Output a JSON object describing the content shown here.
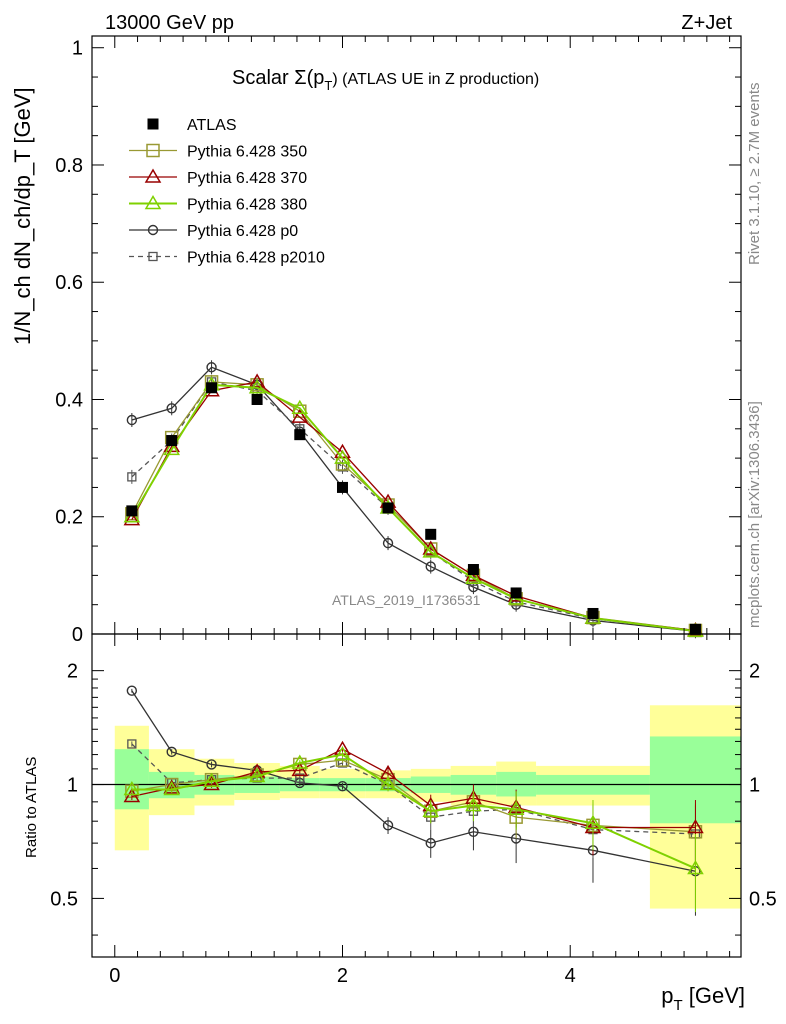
{
  "header": {
    "energy": "13000 GeV pp",
    "process": "Z+Jet"
  },
  "side": {
    "rivet": "Rivet 3.1.10, ≥ 2.7M events",
    "mcplots": "mcplots.cern.ch [arXiv:1306.3436]"
  },
  "watermark": "ATLAS_2019_I1736531",
  "chart_data": [
    {
      "type": "line",
      "panel": "main",
      "title": "Scalar Σ(p_T) (ATLAS UE in Z production)",
      "title_main": "Scalar Σ(p",
      "title_sub": "T",
      "title_rest": ") (ATLAS UE in Z production)",
      "ylabel": "1/N_ch dN_ch/dp_T [GeV]",
      "xlim": [
        -0.2,
        5.5
      ],
      "ylim": [
        0,
        1.02
      ],
      "yticks": [
        0,
        0.2,
        0.4,
        0.6,
        0.8,
        1
      ],
      "ytick_labels": [
        "0",
        "0.2",
        "0.4",
        "0.6",
        "0.8",
        "1"
      ],
      "x": [
        0.15,
        0.5,
        0.85,
        1.25,
        1.625,
        2.0,
        2.4,
        2.775,
        3.15,
        3.525,
        4.2,
        5.1
      ],
      "series": [
        {
          "name": "ATLAS",
          "marker": "filled-square",
          "color": "#000000",
          "values": [
            0.21,
            0.33,
            0.42,
            0.4,
            0.34,
            0.25,
            0.215,
            0.17,
            0.11,
            0.07,
            0.035,
            0.008
          ]
        },
        {
          "name": "Pythia 6.428 350",
          "marker": "open-square",
          "color": "#999933",
          "values": [
            0.205,
            0.335,
            0.43,
            0.425,
            0.38,
            0.29,
            0.22,
            0.145,
            0.1,
            0.06,
            0.028,
            0.006
          ]
        },
        {
          "name": "Pythia 6.428 370",
          "marker": "open-triangle",
          "color": "#990000",
          "values": [
            0.195,
            0.32,
            0.415,
            0.43,
            0.37,
            0.31,
            0.225,
            0.145,
            0.1,
            0.065,
            0.027,
            0.006
          ]
        },
        {
          "name": "Pythia 6.428 380",
          "marker": "open-triangle",
          "color": "#7FD100",
          "values": [
            0.2,
            0.315,
            0.425,
            0.42,
            0.385,
            0.3,
            0.215,
            0.14,
            0.095,
            0.06,
            0.027,
            0.005
          ]
        },
        {
          "name": "Pythia 6.428 p0",
          "marker": "open-circle",
          "color": "#333333",
          "values": [
            0.365,
            0.385,
            0.455,
            0.425,
            0.345,
            0.25,
            0.155,
            0.115,
            0.08,
            0.05,
            0.023,
            0.0047
          ]
        },
        {
          "name": "Pythia 6.428 p2010",
          "marker": "open-square-small",
          "color": "#555555",
          "dashed": true,
          "values": [
            0.268,
            0.33,
            0.43,
            0.415,
            0.35,
            0.285,
            0.215,
            0.14,
            0.09,
            0.055,
            0.026,
            0.006
          ]
        }
      ]
    },
    {
      "type": "line",
      "panel": "ratio",
      "ylabel": "Ratio to ATLAS",
      "xlabel": "p_T [GeV]",
      "xlabel_main": "p",
      "xlabel_sub": "T",
      "xlabel_rest": " [GeV]",
      "xlim": [
        -0.2,
        5.5
      ],
      "ylim": [
        0.35,
        2.5
      ],
      "xticks": [
        0,
        2,
        4
      ],
      "xtick_labels": [
        "0",
        "2",
        "4"
      ],
      "yticks": [
        0.5,
        1,
        2
      ],
      "ytick_labels": [
        "0.5",
        "1",
        "2"
      ],
      "band_edges": [
        0,
        0.3,
        0.7,
        1.05,
        1.45,
        1.8,
        2.2,
        2.6,
        2.95,
        3.35,
        3.7,
        4.7,
        5.5
      ],
      "band_yellow": [
        [
          0.67,
          1.43
        ],
        [
          0.83,
          1.24
        ],
        [
          0.88,
          1.17
        ],
        [
          0.91,
          1.14
        ],
        [
          0.92,
          1.12
        ],
        [
          0.92,
          1.1
        ],
        [
          0.92,
          1.09
        ],
        [
          0.9,
          1.1
        ],
        [
          0.88,
          1.12
        ],
        [
          0.88,
          1.15
        ],
        [
          0.88,
          1.12
        ],
        [
          0.47,
          1.62
        ]
      ],
      "band_green": [
        [
          0.86,
          1.24
        ],
        [
          0.92,
          1.08
        ],
        [
          0.94,
          1.06
        ],
        [
          0.95,
          1.05
        ],
        [
          0.96,
          1.04
        ],
        [
          0.96,
          1.04
        ],
        [
          0.96,
          1.04
        ],
        [
          0.95,
          1.05
        ],
        [
          0.94,
          1.06
        ],
        [
          0.93,
          1.08
        ],
        [
          0.94,
          1.06
        ],
        [
          0.79,
          1.34
        ]
      ],
      "x": [
        0.15,
        0.5,
        0.85,
        1.25,
        1.625,
        2.0,
        2.4,
        2.775,
        3.15,
        3.525,
        4.2,
        5.1
      ],
      "series": [
        {
          "name": "Pythia 6.428 350",
          "values": [
            0.96,
            1.0,
            1.03,
            1.06,
            1.13,
            1.16,
            1.03,
            0.85,
            0.9,
            0.82,
            0.78,
            0.75
          ]
        },
        {
          "name": "Pythia 6.428 370",
          "values": [
            0.93,
            0.98,
            1.0,
            1.08,
            1.09,
            1.24,
            1.07,
            0.88,
            0.92,
            0.87,
            0.77,
            0.77
          ]
        },
        {
          "name": "Pythia 6.428 380",
          "values": [
            0.97,
            0.97,
            1.02,
            1.05,
            1.14,
            1.2,
            1.0,
            0.85,
            0.88,
            0.86,
            0.79,
            0.6
          ]
        },
        {
          "name": "Pythia 6.428 p0",
          "values": [
            1.77,
            1.22,
            1.13,
            1.09,
            1.01,
            0.99,
            0.78,
            0.7,
            0.75,
            0.72,
            0.67,
            0.59
          ]
        },
        {
          "name": "Pythia 6.428 p2010",
          "values": [
            1.28,
            1.01,
            1.03,
            1.04,
            1.04,
            1.14,
            1.0,
            0.82,
            0.85,
            0.86,
            0.76,
            0.74
          ]
        }
      ]
    }
  ]
}
